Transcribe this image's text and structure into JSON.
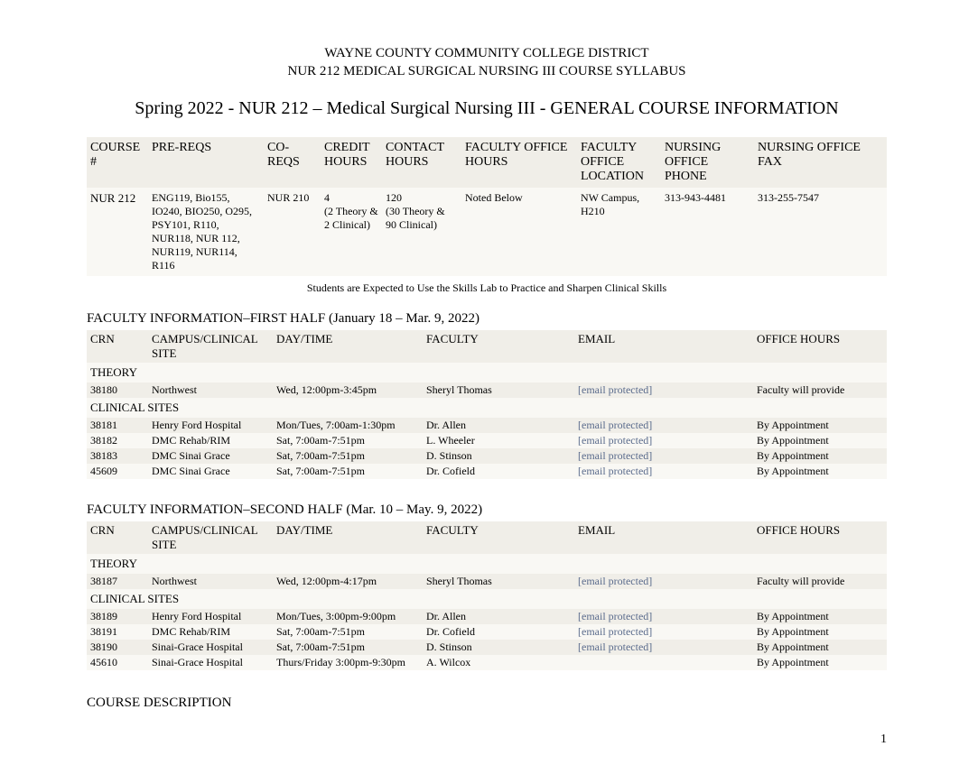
{
  "header": {
    "line1": "WAYNE COUNTY COMMUNITY COLLEGE DISTRICT",
    "line2": "NUR 212 MEDICAL SURGICAL NURSING III COURSE SYLLABUS",
    "subheader": "Spring 2022 - NUR 212 – Medical Surgical Nursing III - GENERAL COURSE INFORMATION"
  },
  "general_table": {
    "headers": {
      "course_num": "COURSE #",
      "prereqs": "PRE-REQS",
      "coreqs": "CO-REQS",
      "credit_hours": "CREDIT HOURS",
      "contact_hours": "CONTACT HOURS",
      "fac_office_hours": "FACULTY OFFICE HOURS",
      "fac_office_loc": "FACULTY OFFICE LOCATION",
      "nursing_phone": "NURSING OFFICE PHONE",
      "nursing_fax": "NURSING OFFICE FAX"
    },
    "row": {
      "course_num": "NUR 212",
      "prereqs": "ENG119, Bio155, IO240, BIO250, O295, PSY101, R110, NUR118, NUR 112, NUR119, NUR114, R116",
      "coreqs": "NUR 210",
      "credit_hours_line1": "4",
      "credit_hours_line2": "(2 Theory & 2 Clinical)",
      "contact_hours_line1": "120",
      "contact_hours_line2": "(30 Theory & 90 Clinical)",
      "fac_office_hours": "Noted Below",
      "fac_office_loc": "NW Campus, H210",
      "nursing_phone": "313-943-4481",
      "nursing_fax": "313-255-7547"
    }
  },
  "skills_note": "Students are Expected to Use the Skills Lab to Practice and Sharpen Clinical Skills",
  "first_half": {
    "heading": "FACULTY INFORMATION–FIRST HALF (January 18 – Mar. 9, 2022)",
    "headers": {
      "crn": "CRN",
      "site": "CAMPUS/CLINICAL SITE",
      "daytime": "DAY/TIME",
      "faculty": "FACULTY",
      "email": "EMAIL",
      "office": "OFFICE HOURS"
    },
    "theory_label": "THEORY",
    "theory_row": {
      "crn": "38180",
      "site": "Northwest",
      "daytime": "Wed,  12:00pm-3:45pm",
      "faculty": "Sheryl Thomas",
      "email": "[email protected]",
      "office": "Faculty will provide"
    },
    "clinical_label": "CLINICAL SITES",
    "clinical_rows": [
      {
        "crn": "38181",
        "site": "Henry Ford Hospital",
        "daytime": "Mon/Tues, 7:00am-1:30pm",
        "faculty": "Dr. Allen",
        "email": "[email protected]",
        "office": "By Appointment"
      },
      {
        "crn": "38182",
        "site": "DMC Rehab/RIM",
        "daytime": "Sat, 7:00am-7:51pm",
        "faculty": "L. Wheeler",
        "email": "[email protected]",
        "office": "By Appointment"
      },
      {
        "crn": "38183",
        "site": "DMC Sinai Grace",
        "daytime": "Sat, 7:00am-7:51pm",
        "faculty": "D. Stinson",
        "email": "[email protected]",
        "office": "By Appointment"
      },
      {
        "crn": "45609",
        "site": "DMC Sinai Grace",
        "daytime": "Sat, 7:00am-7:51pm",
        "faculty": "Dr. Cofield",
        "email": "[email protected]",
        "office": "By Appointment"
      }
    ]
  },
  "second_half": {
    "heading": "FACULTY INFORMATION–SECOND HALF (Mar. 10 – May. 9, 2022)",
    "headers": {
      "crn": "CRN",
      "site": "CAMPUS/CLINICAL SITE",
      "daytime": "DAY/TIME",
      "faculty": "FACULTY",
      "email": "EMAIL",
      "office": "OFFICE HOURS"
    },
    "theory_label": "THEORY",
    "theory_row": {
      "crn": "38187",
      "site": "Northwest",
      "daytime": "Wed, 12:00pm-4:17pm",
      "faculty": "Sheryl Thomas",
      "email": "[email protected]",
      "office": "Faculty will provide"
    },
    "clinical_label": "CLINICAL SITES",
    "clinical_rows": [
      {
        "crn": "38189",
        "site": "Henry Ford Hospital",
        "daytime": "Mon/Tues, 3:00pm-9:00pm",
        "faculty": "Dr. Allen",
        "email": "[email protected]",
        "office": "By Appointment"
      },
      {
        "crn": "38191",
        "site": "DMC Rehab/RIM",
        "daytime": "Sat, 7:00am-7:51pm",
        "faculty": "Dr. Cofield",
        "email": "[email protected]",
        "office": "By Appointment"
      },
      {
        "crn": "38190",
        "site": "Sinai-Grace Hospital",
        "daytime": "Sat, 7:00am-7:51pm",
        "faculty": "D. Stinson",
        "email": "[email protected]",
        "office": "By Appointment"
      },
      {
        "crn": "45610",
        "site": "Sinai-Grace Hospital",
        "daytime": "Thurs/Friday 3:00pm-9:30pm",
        "faculty": "A. Wilcox",
        "email": "",
        "office": "By Appointment"
      }
    ]
  },
  "course_desc_heading": "COURSE DESCRIPTION",
  "page_number": "1",
  "colors": {
    "text": "#000000",
    "link": "#5a6b8c",
    "shade_dark": "#f0eee8",
    "shade_light": "#f9f8f4",
    "background": "#ffffff"
  }
}
